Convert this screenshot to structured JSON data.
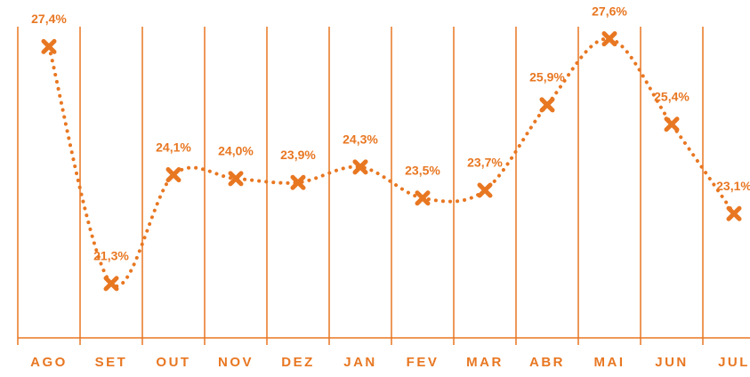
{
  "chart_data": {
    "type": "line",
    "categories": [
      "AGO",
      "SET",
      "OUT",
      "NOV",
      "DEZ",
      "JAN",
      "FEV",
      "MAR",
      "ABR",
      "MAI",
      "JUN",
      "JUL"
    ],
    "values": [
      27.4,
      21.3,
      24.1,
      24.0,
      23.9,
      24.3,
      23.5,
      23.7,
      25.9,
      27.6,
      25.4,
      23.1
    ],
    "value_labels": [
      "27,4%",
      "21,3%",
      "24,1%",
      "24,0%",
      "23,9%",
      "24,3%",
      "23,5%",
      "23,7%",
      "25,9%",
      "27,6%",
      "25,4%",
      "23,1%"
    ],
    "color": "#E87722",
    "ylim": [
      19.9,
      28.6
    ]
  }
}
